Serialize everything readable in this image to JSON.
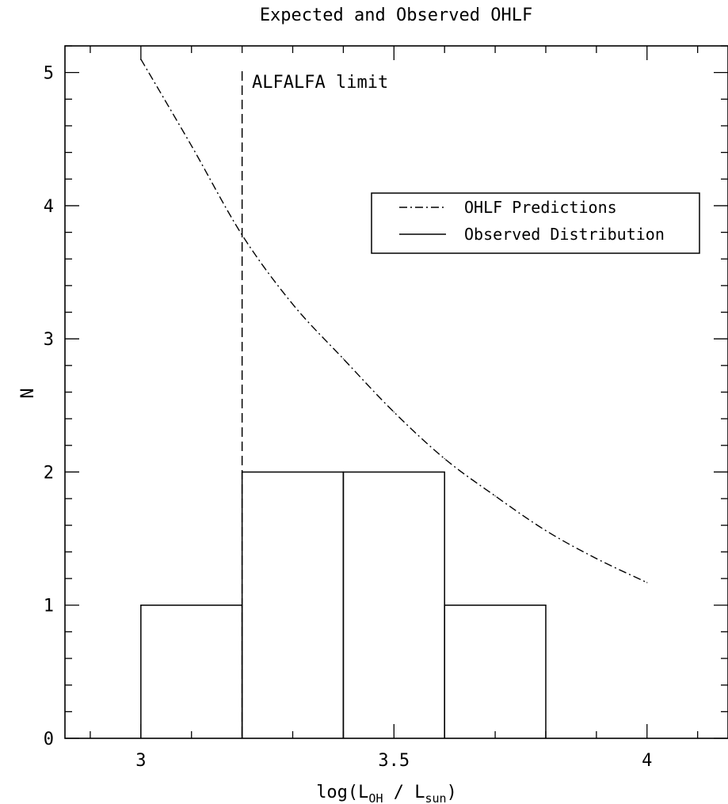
{
  "chart_data": {
    "type": "histogram",
    "title": "Expected and Observed OHLF",
    "xlabel": {
      "prefix": "log(L",
      "sub1": "OH",
      "middle": " / L",
      "sub2": "sun",
      "suffix": ")"
    },
    "ylabel": "N",
    "xlim": [
      2.85,
      4.16
    ],
    "ylim": [
      0,
      5.2
    ],
    "x_ticks": [
      {
        "value": 3,
        "label": "3"
      },
      {
        "value": 3.5,
        "label": "3.5"
      },
      {
        "value": 4,
        "label": "4"
      }
    ],
    "y_ticks": [
      {
        "value": 0,
        "label": "0"
      },
      {
        "value": 1,
        "label": "1"
      },
      {
        "value": 2,
        "label": "2"
      },
      {
        "value": 3,
        "label": "3"
      },
      {
        "value": 4,
        "label": "4"
      },
      {
        "value": 5,
        "label": "5"
      }
    ],
    "legend": {
      "placement": "upper-right",
      "entries": [
        "OHLF Predictions",
        "Observed Distribution"
      ]
    },
    "series": [
      {
        "name": "OHLF Predictions",
        "style": "dash-dot",
        "x": [
          3.0,
          3.1,
          3.2,
          3.3,
          3.4,
          3.5,
          3.6,
          3.7,
          3.8,
          3.9,
          4.0
        ],
        "y": [
          5.1,
          4.45,
          3.78,
          3.26,
          2.85,
          2.45,
          2.1,
          1.82,
          1.56,
          1.35,
          1.17
        ]
      },
      {
        "name": "Observed Distribution",
        "style": "solid-step",
        "bins": [
          {
            "x0": 3.0,
            "x1": 3.2,
            "count": 1
          },
          {
            "x0": 3.2,
            "x1": 3.4,
            "count": 2
          },
          {
            "x0": 3.4,
            "x1": 3.6,
            "count": 2
          },
          {
            "x0": 3.6,
            "x1": 3.8,
            "count": 1
          }
        ]
      }
    ],
    "annotations": [
      {
        "text": "ALFALFA limit",
        "x": 3.2,
        "style": "dashed-vertical"
      }
    ]
  }
}
